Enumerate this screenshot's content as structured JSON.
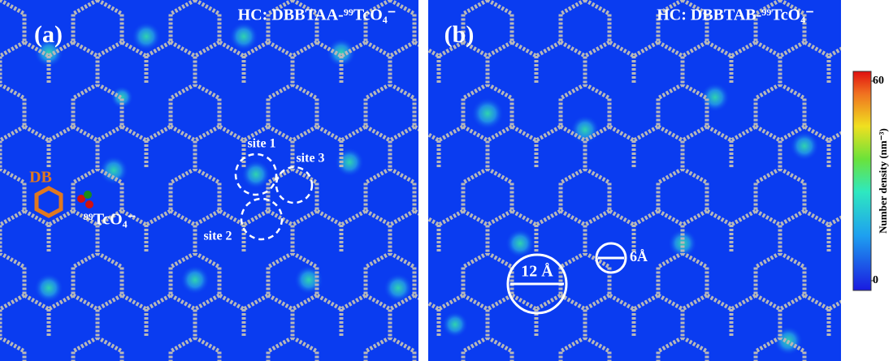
{
  "panels": [
    {
      "label": "(a)",
      "title": "HC: DBBTAA-⁹⁹TcO₄⁻",
      "annotations": [
        "site 1",
        "site 3",
        "site 2",
        "DB",
        "⁹⁹TcO₄⁻"
      ]
    },
    {
      "label": "(b)",
      "title": "HC: DBBTAB-⁹⁹TcO₄⁻",
      "annotations": [
        "12 Å",
        "6Å"
      ]
    }
  ],
  "colorbar": {
    "label": "Number density (nm⁻³)",
    "range": [
      0,
      60
    ],
    "ticks": [
      0,
      60
    ]
  }
}
